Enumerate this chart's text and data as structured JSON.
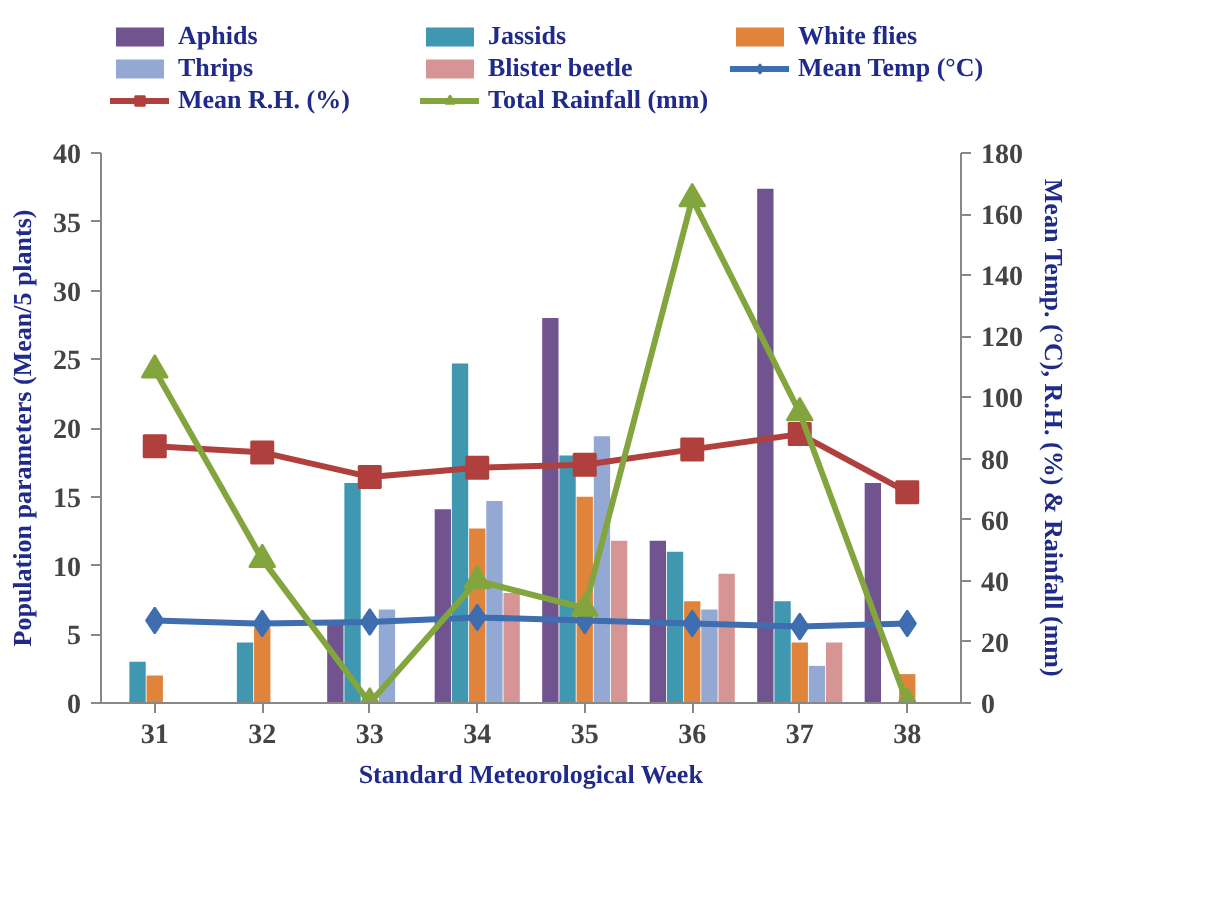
{
  "chart_data": {
    "type": "bar",
    "xlabel": "Standard Meteorological Week",
    "ylabel": "Population parameters (Mean/5 plants)",
    "y2label": "Mean Temp. (°C), R.H. (%) & Rainfall (mm)",
    "categories": [
      "31",
      "32",
      "33",
      "34",
      "35",
      "36",
      "37",
      "38"
    ],
    "series": [
      {
        "name": "Aphids",
        "color": "#71548f",
        "values": [
          null,
          null,
          5.8,
          14.1,
          28.0,
          11.8,
          37.4,
          16.0
        ]
      },
      {
        "name": "Jassids",
        "color": "#3f97b0",
        "values": [
          3.0,
          4.4,
          16.0,
          24.7,
          18.0,
          11.0,
          7.4,
          null
        ]
      },
      {
        "name": "White flies",
        "color": "#e0843c",
        "values": [
          2.0,
          5.5,
          null,
          12.7,
          15.0,
          7.4,
          4.4,
          2.1
        ]
      },
      {
        "name": "Thrips",
        "color": "#93a9d3",
        "values": [
          null,
          null,
          6.8,
          14.7,
          19.4,
          6.8,
          2.7,
          null
        ]
      },
      {
        "name": "Blister beetle",
        "color": "#d69594",
        "values": [
          null,
          null,
          null,
          8.0,
          11.8,
          9.4,
          4.4,
          null
        ]
      },
      {
        "name": "Mean Temp (°C)",
        "type": "line",
        "axis": "y2",
        "marker": "diamond",
        "color": "#3e6db0",
        "values": [
          27,
          26,
          26.5,
          28,
          27,
          26,
          25,
          26
        ]
      },
      {
        "name": "Mean R.H. (%)",
        "type": "line",
        "axis": "y2",
        "marker": "square",
        "color": "#b0403d",
        "values": [
          84,
          82,
          74,
          77,
          78,
          83,
          88,
          69
        ]
      },
      {
        "name": "Total Rainfall (mm)",
        "type": "line",
        "axis": "y2",
        "marker": "triangle",
        "color": "#83a53d",
        "values": [
          109,
          47,
          0,
          40,
          31,
          165,
          95,
          0
        ]
      }
    ],
    "ylim": [
      0,
      40
    ],
    "yticks": [
      0,
      5,
      10,
      15,
      20,
      25,
      30,
      35,
      40
    ],
    "y2lim": [
      0,
      180
    ],
    "y2ticks": [
      0,
      20,
      40,
      60,
      80,
      100,
      120,
      140,
      160,
      180
    ],
    "grid": false,
    "legend": "top"
  }
}
